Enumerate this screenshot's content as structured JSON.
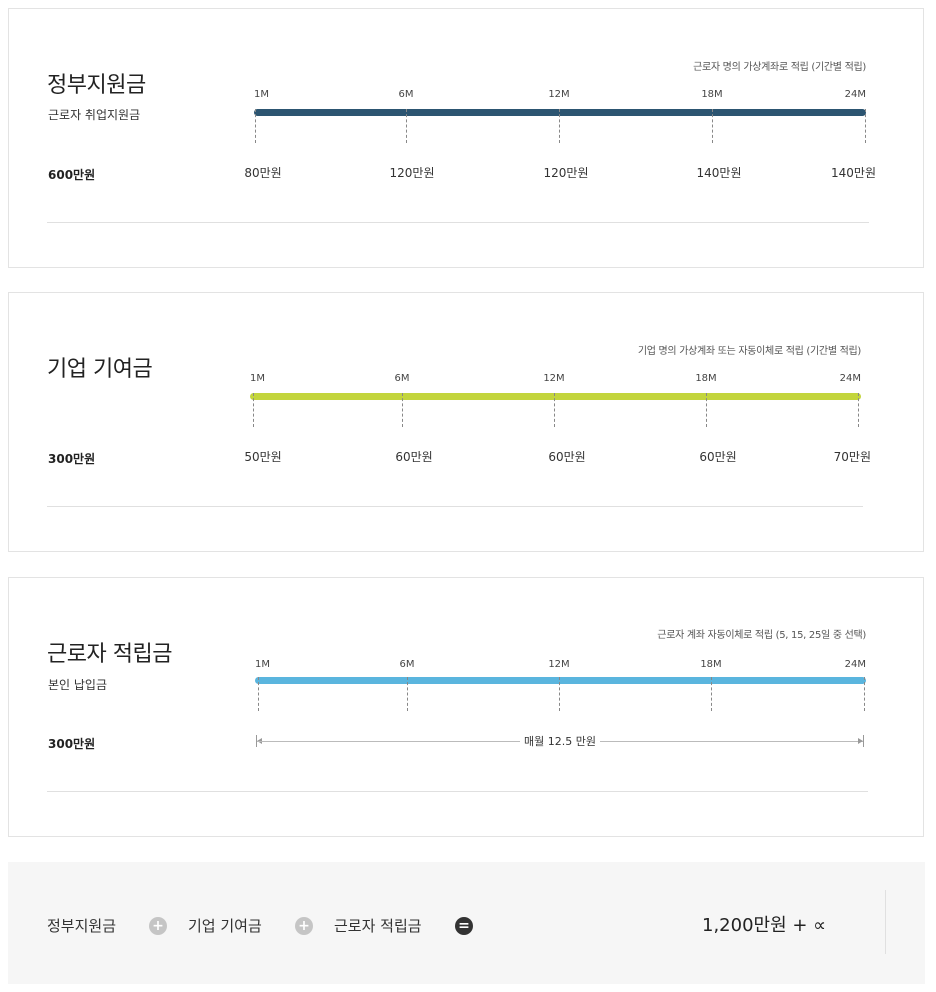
{
  "cards": [
    {
      "title": "정부지원금",
      "subtitle": "근로자 취업지원금",
      "note": "근로자 명의 가상계좌로 적립 (기간별 적립)",
      "total": "600만원",
      "bar_color": "#2c5571",
      "ticks": [
        "1M",
        "6M",
        "12M",
        "18M",
        "24M"
      ],
      "amounts": [
        "80만원",
        "120만원",
        "120만원",
        "140만원",
        "140만원"
      ]
    },
    {
      "title": "기업 기여금",
      "subtitle": "",
      "note": "기업 명의 가상계좌 또는 자동이체로 적립 (기간별 적립)",
      "total": "300만원",
      "bar_color": "#c3d53c",
      "ticks": [
        "1M",
        "6M",
        "12M",
        "18M",
        "24M"
      ],
      "amounts": [
        "50만원",
        "60만원",
        "60만원",
        "60만원",
        "70만원"
      ]
    },
    {
      "title": "근로자 적립금",
      "subtitle": "본인 납입금",
      "note": "근로자 계좌 자동이체로 적립 (5, 15, 25일 중 선택)",
      "total": "300만원",
      "bar_color": "#5ab5de",
      "ticks": [
        "1M",
        "6M",
        "12M",
        "18M",
        "24M"
      ],
      "monthly_label": "매월 12.5 만원"
    }
  ],
  "summary": {
    "item1": "정부지원금",
    "op1": "+",
    "item2": "기업 기여금",
    "op2": "+",
    "item3": "근로자 적립금",
    "op3": "=",
    "result": "1,200만원 + ∝"
  }
}
